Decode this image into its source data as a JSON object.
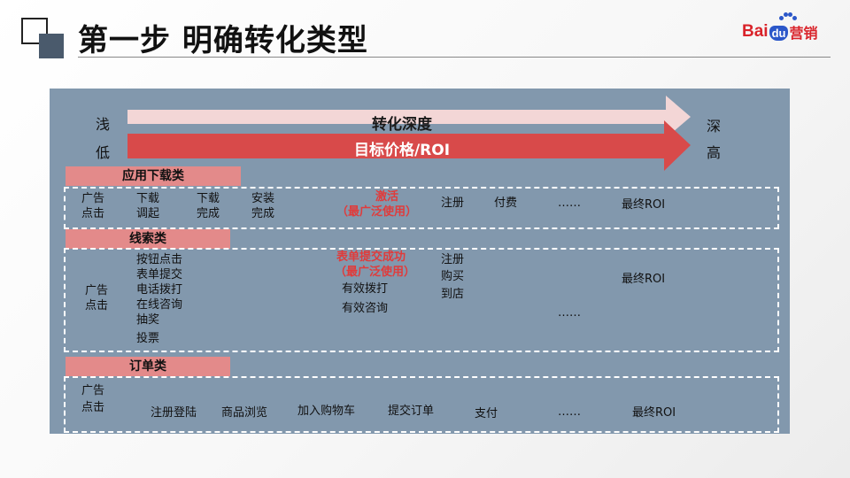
{
  "title": "第一步 明确转化类型",
  "logo": {
    "bai": "Bai",
    "du": "du",
    "yingxiao": "营销"
  },
  "scale": {
    "left_top": "浅",
    "left_bottom": "低",
    "right_top": "深",
    "right_bottom": "高",
    "arrow1_label": "转化深度",
    "arrow2_label": "目标价格/ROI"
  },
  "app": {
    "label": "应用下载类",
    "ad_click_1": "广告",
    "ad_click_2": "点击",
    "dl_tune_1": "下载",
    "dl_tune_2": "调起",
    "dl_done_1": "下载",
    "dl_done_2": "完成",
    "inst_done_1": "安装",
    "inst_done_2": "完成",
    "activate": "激活",
    "activate_note": "（最广泛使用）",
    "register": "注册",
    "pay": "付费",
    "ellipsis": "……",
    "roi": "最终ROI"
  },
  "lead": {
    "label": "线索类",
    "ad_click_1": "广告",
    "ad_click_2": "点击",
    "actions": [
      "按钮点击",
      "表单提交",
      "电话拨打",
      "在线咨询",
      "抽奖",
      "投票"
    ],
    "form_success": "表单提交成功",
    "form_note": "（最广泛使用）",
    "valid_call": "有效拨打",
    "valid_consult": "有效咨询",
    "reg_1": "注册",
    "reg_2": "购买",
    "reg_3": "到店",
    "ellipsis": "……",
    "roi": "最终ROI"
  },
  "order": {
    "label": "订单类",
    "ad_click_1": "广告",
    "ad_click_2": "点击",
    "register_login": "注册登陆",
    "browse": "商品浏览",
    "add_cart": "加入购物车",
    "submit_order": "提交订单",
    "pay": "支付",
    "ellipsis": "……",
    "roi": "最终ROI"
  },
  "colors": {
    "panel": "#8298ad",
    "arrow_light": "#f3d6d6",
    "arrow_red": "#d84a4a",
    "cat_bar": "#e38a8a",
    "highlight_text": "#e03b3b"
  }
}
